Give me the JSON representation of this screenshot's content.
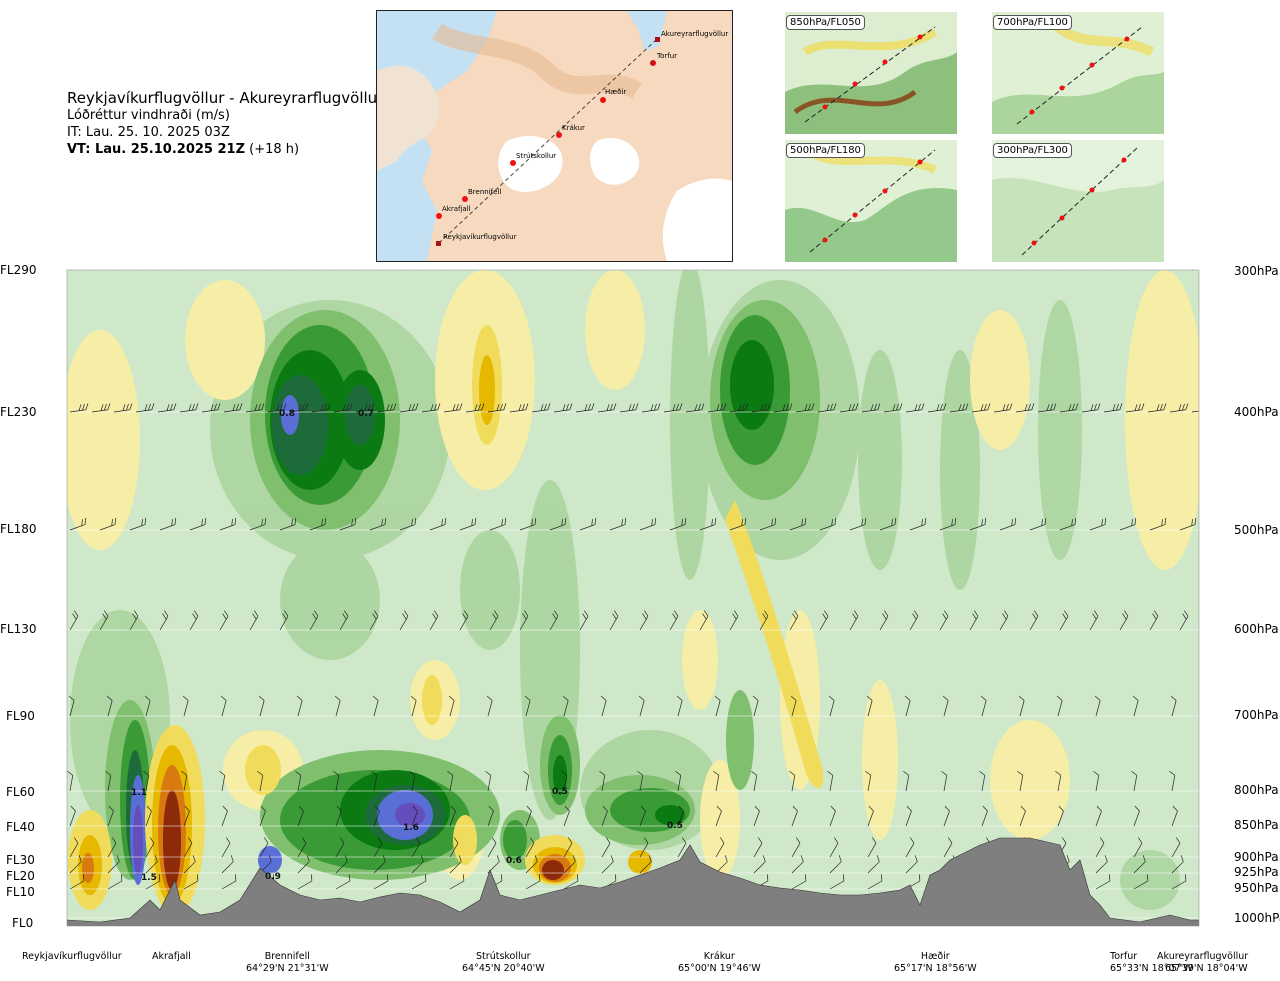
{
  "header": {
    "route": "Reykjavíkurflugvöllur - Akureyrarflugvöllur",
    "quantity": "Lóðréttur vindhraði (m/s)",
    "init_time": "IT: Lau. 25. 10. 2025 03Z",
    "valid_label": "VT: Lau. 25.10.2025 21Z",
    "lead": "(+18 h)"
  },
  "route_map": {
    "stations": [
      "Akureyrarflugvöllur",
      "Torfur",
      "Hæðir",
      "Krákur",
      "Strútskollur",
      "Brennifell",
      "Akrafjall",
      "Reykjavíkurflugvöllur"
    ]
  },
  "mini_maps": [
    {
      "label": "850hPa/FL050"
    },
    {
      "label": "700hPa/FL100"
    },
    {
      "label": "500hPa/FL180"
    },
    {
      "label": "300hPa/FL300"
    }
  ],
  "chart_data": {
    "type": "heatmap",
    "title": "Lóðréttur vindhraði (m/s)",
    "left_axis": [
      "FL290",
      "FL230",
      "FL180",
      "FL130",
      "FL90",
      "FL60",
      "FL40",
      "FL30",
      "FL20",
      "FL10",
      "FL0"
    ],
    "right_axis": [
      "300hPa",
      "400hPa",
      "500hPa",
      "600hPa",
      "700hPa",
      "800hPa",
      "850hPa",
      "900hPa",
      "925hPa",
      "950hPa",
      "1000hPa"
    ],
    "stations": [
      {
        "name": "Reykjavíkurflugvöllur",
        "coord": ""
      },
      {
        "name": "Akrafjall",
        "coord": ""
      },
      {
        "name": "Brennifell",
        "coord": "64°29'N 21°31'W"
      },
      {
        "name": "Strútskollur",
        "coord": "64°45'N 20°40'W"
      },
      {
        "name": "Krákur",
        "coord": "65°00'N 19°46'W"
      },
      {
        "name": "Hæðir",
        "coord": "65°17'N 18°56'W"
      },
      {
        "name": "Torfur",
        "coord": "65°33'N 18°07'W"
      },
      {
        "name": "Akureyrarflugvöllur",
        "coord": "65°39'N 18°04'W"
      }
    ],
    "contour_labels": [
      "0.8",
      "0.7",
      "1.1",
      "1.5",
      "0.9",
      "1.6",
      "0.5",
      "0.6",
      "0.5"
    ],
    "colors": {
      "updraft_weak": "#cfe8c9",
      "updraft_mod": "#a9d39c",
      "updraft_med": "#7fbf6e",
      "updraft_strong": "#3a9a36",
      "updraft_vstrong": "#0b7a12",
      "updraft_dark": "#1d6b3a",
      "updraft_extreme": "#5a6fd6",
      "down_weak": "#f6eea6",
      "down_mod": "#f0dc5a",
      "down_strong": "#e6b800",
      "down_vstrong": "#d97a10",
      "down_extreme": "#8c2a0a",
      "terrain": "#7f7f7f"
    }
  }
}
